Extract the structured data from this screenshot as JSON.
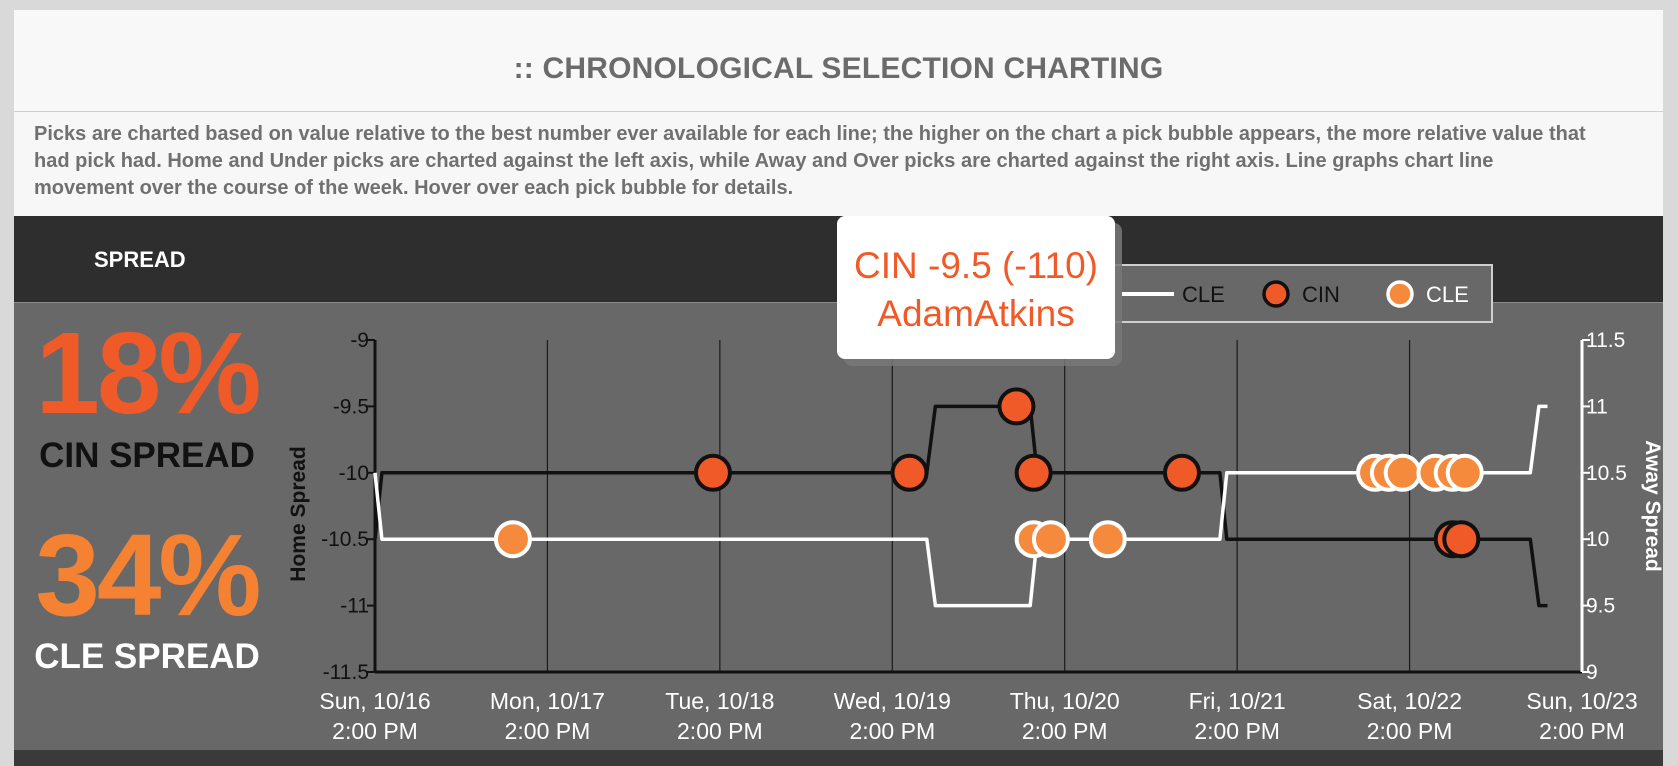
{
  "title": ":: CHRONOLOGICAL SELECTION CHARTING",
  "description": "Picks are charted based on value relative to the best number ever available for each line; the higher on the chart a pick bubble appears, the more relative value that had pick had. Home and Under picks are charted against the left axis, while Away and Over picks are charted against the right axis. Line graphs chart line movement over the course of the week. Hover over each pick bubble for details.",
  "section_label": "SPREAD",
  "summary": [
    {
      "percent": "18%",
      "label": "CIN SPREAD",
      "color": "#f05a28"
    },
    {
      "percent": "34%",
      "label": "CLE SPREAD",
      "color": "#f58233"
    }
  ],
  "tooltip": {
    "line1": "CIN -9.5 (-110)",
    "line2": "AdamAtkins"
  },
  "colors": {
    "cin_bubble": "#f05a28",
    "cle_bubble": "#f58a3c",
    "home_line": "#111111",
    "away_line": "#ffffff",
    "panel_bg": "#686868"
  },
  "chart_data": {
    "type": "line",
    "x_ticks": [
      {
        "l1": "Sun, 10/16",
        "l2": "2:00 PM"
      },
      {
        "l1": "Mon, 10/17",
        "l2": "2:00 PM"
      },
      {
        "l1": "Tue, 10/18",
        "l2": "2:00 PM"
      },
      {
        "l1": "Wed, 10/19",
        "l2": "2:00 PM"
      },
      {
        "l1": "Thu, 10/20",
        "l2": "2:00 PM"
      },
      {
        "l1": "Fri, 10/21",
        "l2": "2:00 PM"
      },
      {
        "l1": "Sat, 10/22",
        "l2": "2:00 PM"
      },
      {
        "l1": "Sun, 10/23",
        "l2": "2:00 PM"
      }
    ],
    "x_range_days": [
      0,
      7
    ],
    "left_axis": {
      "label": "Home Spread",
      "ticks": [
        "-9",
        "-9.5",
        "-10",
        "-10.5",
        "-11",
        "-11.5"
      ],
      "range": [
        -11.5,
        -9
      ]
    },
    "right_axis": {
      "label": "Away Spread",
      "ticks": [
        "11.5",
        "11",
        "10.5",
        "10",
        "9.5",
        "9"
      ],
      "range": [
        9,
        11.5
      ]
    },
    "legend": [
      {
        "name": "CLE",
        "kind": "line"
      },
      {
        "name": "CIN",
        "kind": "bubble"
      },
      {
        "name": "CLE",
        "kind": "bubble"
      }
    ],
    "series": [
      {
        "name": "Home line (CIN)",
        "axis": "left",
        "points": [
          [
            0.0,
            -10.5
          ],
          [
            0.04,
            -10
          ],
          [
            3.2,
            -10
          ],
          [
            3.25,
            -9.5
          ],
          [
            3.8,
            -9.5
          ],
          [
            3.84,
            -10
          ],
          [
            4.9,
            -10
          ],
          [
            4.94,
            -10.5
          ],
          [
            6.7,
            -10.5
          ],
          [
            6.75,
            -11
          ],
          [
            6.8,
            -11
          ]
        ]
      },
      {
        "name": "Away line (CLE)",
        "axis": "right",
        "points": [
          [
            0.0,
            10.5
          ],
          [
            0.04,
            10
          ],
          [
            3.2,
            10
          ],
          [
            3.25,
            9.5
          ],
          [
            3.8,
            9.5
          ],
          [
            3.84,
            10
          ],
          [
            4.9,
            10
          ],
          [
            4.94,
            10.5
          ],
          [
            6.7,
            10.5
          ],
          [
            6.75,
            11
          ],
          [
            6.8,
            11
          ]
        ]
      }
    ],
    "bubbles": [
      {
        "team": "CIN",
        "axis": "left",
        "points": [
          [
            1.96,
            -10
          ],
          [
            3.1,
            -10
          ],
          [
            3.72,
            -9.5
          ],
          [
            3.82,
            -10
          ],
          [
            4.68,
            -10
          ],
          [
            6.25,
            -10.5
          ],
          [
            6.3,
            -10.5
          ]
        ]
      },
      {
        "team": "CLE",
        "axis": "right",
        "points": [
          [
            0.8,
            10
          ],
          [
            3.82,
            10
          ],
          [
            3.92,
            10
          ],
          [
            4.25,
            10
          ],
          [
            5.8,
            10.5
          ],
          [
            5.88,
            10.5
          ],
          [
            5.96,
            10.5
          ],
          [
            6.15,
            10.5
          ],
          [
            6.25,
            10.5
          ],
          [
            6.32,
            10.5
          ]
        ]
      }
    ]
  }
}
